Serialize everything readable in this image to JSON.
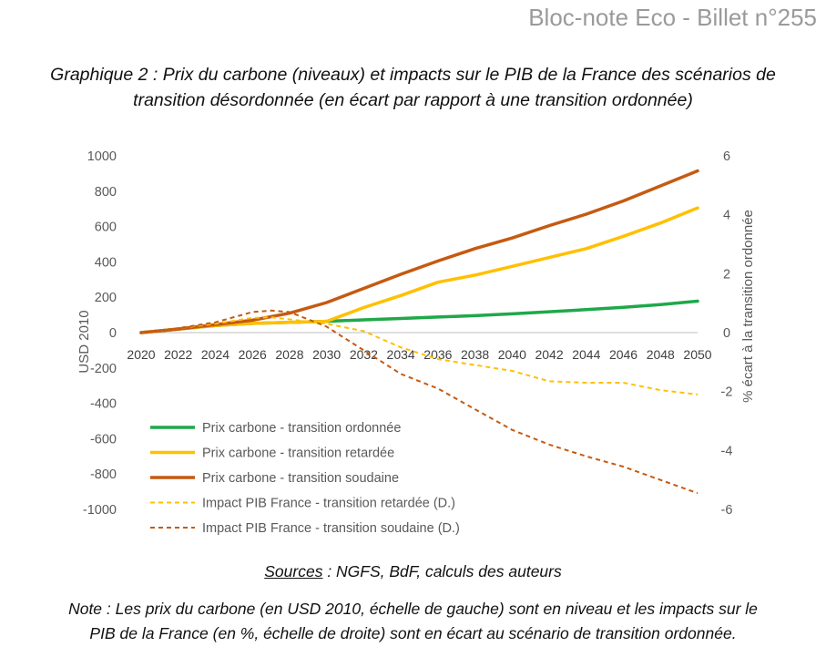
{
  "header": {
    "text": "Bloc-note Eco - Billet n°255"
  },
  "title": {
    "line1": "Graphique 2 : Prix du carbone (niveaux) et impacts sur le PIB de la France des scénarios de",
    "line2": "transition désordonnée (en écart par rapport à une transition ordonnée)"
  },
  "sources": {
    "label": "Sources",
    "text": " : NGFS, BdF, calculs des auteurs"
  },
  "note": {
    "line1": "Note : Les prix du carbone (en USD 2010, échelle de gauche) sont en niveau et les impacts sur le",
    "line2": "PIB de la France (en %, échelle de droite) sont en écart au scénario de transition ordonnée."
  },
  "chart_data": {
    "type": "line",
    "title": "",
    "xlabel": "",
    "ylabel": "USD 2010",
    "y2label": "% écart à la transition ordonnée",
    "ylim": [
      -1000,
      1000
    ],
    "y2lim": [
      -6,
      6
    ],
    "xlim": [
      2020,
      2050
    ],
    "yticks": [
      1000,
      800,
      600,
      400,
      200,
      0,
      -200,
      -400,
      -600,
      -800,
      -1000
    ],
    "y2ticks": [
      6,
      4,
      2,
      0,
      -2,
      -4,
      -6
    ],
    "xticks": [
      2020,
      2022,
      2024,
      2026,
      2028,
      2030,
      2032,
      2034,
      2036,
      2038,
      2040,
      2042,
      2044,
      2046,
      2048,
      2050
    ],
    "grid": false,
    "legend_position": "bottom-left",
    "series": [
      {
        "name": "Prix carbone - transition ordonnée",
        "axis": "left",
        "color": "#1fa84a",
        "dash": false,
        "x": [
          2020,
          2022,
          2024,
          2026,
          2028,
          2030,
          2032,
          2034,
          2036,
          2038,
          2040,
          2042,
          2044,
          2046,
          2048,
          2050
        ],
        "y": [
          0,
          20,
          40,
          52,
          58,
          64,
          72,
          80,
          88,
          96,
          106,
          118,
          130,
          143,
          158,
          178
        ]
      },
      {
        "name": "Prix carbone - transition retardée",
        "axis": "left",
        "color": "#ffc000",
        "dash": false,
        "x": [
          2020,
          2022,
          2024,
          2026,
          2028,
          2030,
          2032,
          2034,
          2036,
          2038,
          2040,
          2042,
          2044,
          2046,
          2048,
          2050
        ],
        "y": [
          0,
          20,
          40,
          52,
          58,
          64,
          142,
          210,
          285,
          325,
          375,
          425,
          475,
          545,
          620,
          705
        ]
      },
      {
        "name": "Prix carbone - transition soudaine",
        "axis": "left",
        "color": "#c55a11",
        "dash": false,
        "x": [
          2020,
          2022,
          2024,
          2026,
          2028,
          2030,
          2032,
          2034,
          2036,
          2038,
          2040,
          2042,
          2044,
          2046,
          2048,
          2050
        ],
        "y": [
          0,
          20,
          45,
          70,
          110,
          170,
          250,
          330,
          405,
          475,
          535,
          605,
          670,
          745,
          830,
          915
        ]
      },
      {
        "name": "Impact PIB France - transition retardée (D.)",
        "axis": "right",
        "color": "#ffc000",
        "dash": true,
        "x": [
          2020,
          2022,
          2024,
          2026,
          2027,
          2028,
          2030,
          2032,
          2034,
          2036,
          2038,
          2040,
          2042,
          2044,
          2046,
          2048,
          2050
        ],
        "y": [
          0,
          0.15,
          0.3,
          0.5,
          0.52,
          0.45,
          0.3,
          0.05,
          -0.5,
          -0.9,
          -1.1,
          -1.3,
          -1.65,
          -1.7,
          -1.7,
          -1.95,
          -2.1
        ]
      },
      {
        "name": "Impact PIB France - transition soudaine (D.)",
        "axis": "right",
        "color": "#c55a11",
        "dash": true,
        "x": [
          2020,
          2022,
          2024,
          2026,
          2027,
          2028,
          2030,
          2032,
          2034,
          2036,
          2038,
          2040,
          2042,
          2044,
          2046,
          2048,
          2050
        ],
        "y": [
          0,
          0.15,
          0.35,
          0.7,
          0.75,
          0.7,
          0.2,
          -0.6,
          -1.4,
          -1.9,
          -2.6,
          -3.3,
          -3.8,
          -4.2,
          -4.55,
          -5.0,
          -5.45
        ]
      }
    ]
  }
}
